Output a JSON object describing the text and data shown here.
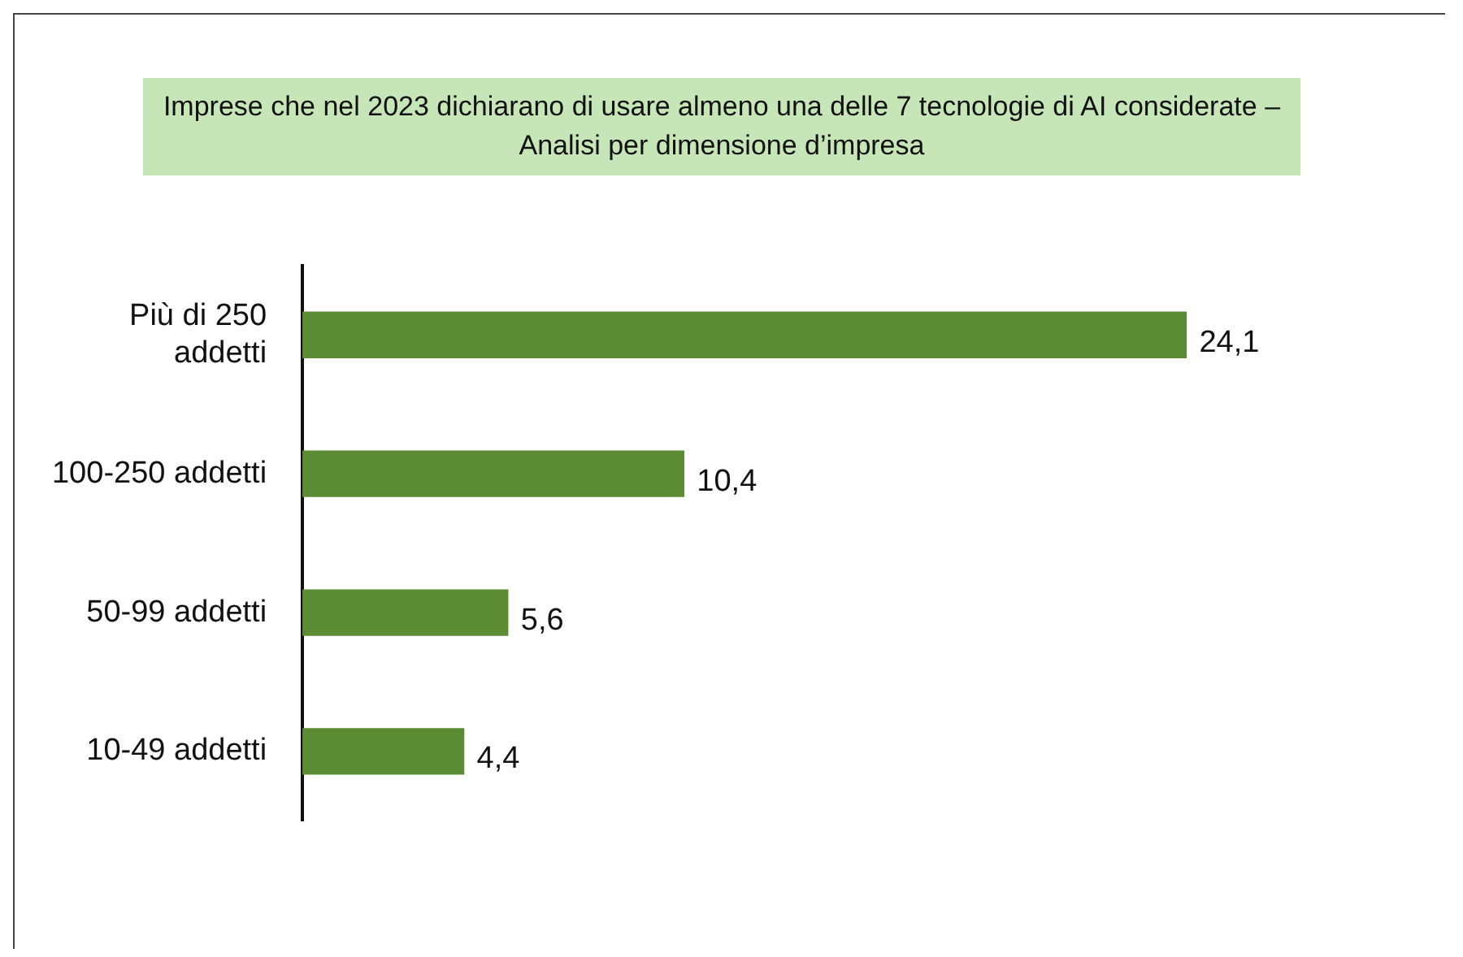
{
  "chart_data": {
    "type": "bar",
    "orientation": "horizontal",
    "title": "Imprese che nel 2023 dichiarano di usare almeno una delle 7 tecnologie di AI considerate – Analisi per dimensione d’impresa",
    "categories": [
      "Più di 250 addetti",
      "100-250 addetti",
      "50-99 addetti",
      "10-49 addetti"
    ],
    "values": [
      24.1,
      10.4,
      5.6,
      4.4
    ],
    "value_labels": [
      "24,1",
      "10,4",
      "5,6",
      "4,4"
    ],
    "color": "#5b8c34"
  }
}
